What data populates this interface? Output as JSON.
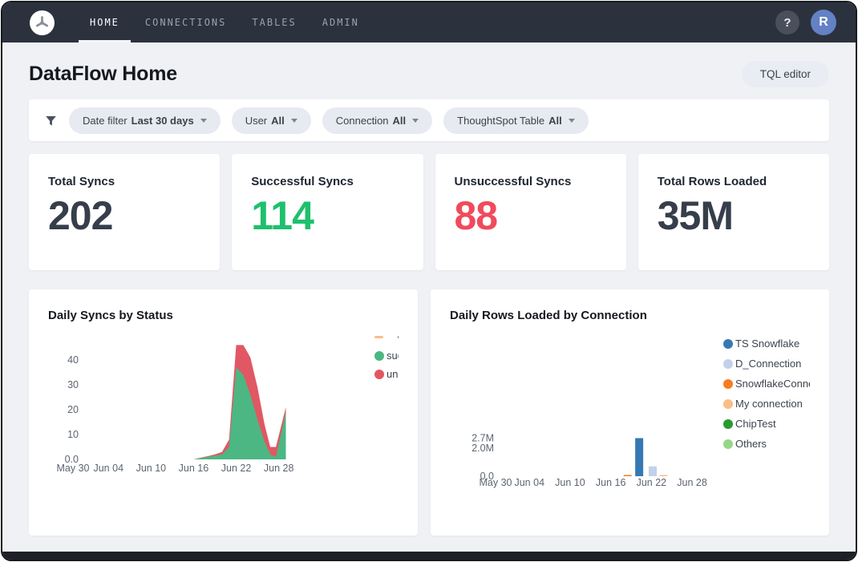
{
  "nav": {
    "items": [
      {
        "label": "HOME",
        "active": true
      },
      {
        "label": "CONNECTIONS",
        "active": false
      },
      {
        "label": "TABLES",
        "active": false
      },
      {
        "label": "ADMIN",
        "active": false
      }
    ],
    "help_label": "?",
    "avatar_label": "R",
    "avatar_color": "#6381c4"
  },
  "header": {
    "title": "DataFlow Home",
    "tql_button_label": "TQL editor"
  },
  "filters": {
    "items": [
      {
        "label": "Date filter",
        "value": "Last 30 days"
      },
      {
        "label": "User",
        "value": "All"
      },
      {
        "label": "Connection",
        "value": "All"
      },
      {
        "label": "ThoughtSpot Table",
        "value": "All"
      }
    ]
  },
  "metrics": [
    {
      "label": "Total Syncs",
      "value": "202",
      "color": "#353e4a"
    },
    {
      "label": "Successful Syncs",
      "value": "114",
      "color": "#1ec06d"
    },
    {
      "label": "Unsuccessful Syncs",
      "value": "88",
      "color": "#f04b5c"
    },
    {
      "label": "Total Rows Loaded",
      "value": "35M",
      "color": "#353e4a"
    }
  ],
  "chart_data": [
    {
      "type": "area",
      "title": "Daily Syncs by Status",
      "stacked": true,
      "grid": false,
      "legend_position": "right",
      "series": [
        {
          "name": "successful",
          "color": "#4cb782"
        },
        {
          "name": "unsuccessful",
          "color": "#e15763"
        }
      ],
      "x_axis": {
        "ticks": [
          {
            "day": 0,
            "label": "May 30"
          },
          {
            "day": 5,
            "label": "Jun 04"
          },
          {
            "day": 11,
            "label": "Jun 10"
          },
          {
            "day": 17,
            "label": "Jun 16"
          },
          {
            "day": 23,
            "label": "Jun 22"
          },
          {
            "day": 29,
            "label": "Jun 28"
          }
        ]
      },
      "y_axis": {
        "ticks": [
          {
            "v": 0,
            "label": "0.0"
          },
          {
            "v": 10,
            "label": "10"
          },
          {
            "v": 20,
            "label": "20"
          },
          {
            "v": 30,
            "label": "30"
          },
          {
            "v": 40,
            "label": "40"
          }
        ],
        "max": 47
      },
      "points": [
        {
          "day": 0,
          "successful": 0,
          "unsuccessful": 0
        },
        {
          "day": 17,
          "successful": 0,
          "unsuccessful": 0
        },
        {
          "day": 18,
          "successful": 0.5,
          "unsuccessful": 0.2
        },
        {
          "day": 19,
          "successful": 1,
          "unsuccessful": 0.3
        },
        {
          "day": 20,
          "successful": 1.5,
          "unsuccessful": 0.5
        },
        {
          "day": 21,
          "successful": 2,
          "unsuccessful": 1
        },
        {
          "day": 22,
          "successful": 5,
          "unsuccessful": 3
        },
        {
          "day": 23,
          "successful": 37,
          "unsuccessful": 9
        },
        {
          "day": 24,
          "successful": 34,
          "unsuccessful": 12
        },
        {
          "day": 25,
          "successful": 26,
          "unsuccessful": 15
        },
        {
          "day": 26,
          "successful": 16,
          "unsuccessful": 13
        },
        {
          "day": 27,
          "successful": 7,
          "unsuccessful": 7
        },
        {
          "day": 27.8,
          "successful": 2,
          "unsuccessful": 3
        },
        {
          "day": 28.6,
          "successful": 1,
          "unsuccessful": 4
        },
        {
          "day": 30,
          "successful": 19,
          "unsuccessful": 2
        }
      ],
      "legend": [
        {
          "label": "",
          "marker": "dash",
          "color": "#fbbd88"
        },
        {
          "label": "successful",
          "marker": "dot",
          "color": "#4cb782"
        },
        {
          "label": "unsuccessful",
          "marker": "dot",
          "color": "#e15763"
        }
      ]
    },
    {
      "type": "bar",
      "title": "Daily Rows Loaded by Connection",
      "grid": false,
      "legend_position": "right",
      "x_axis": {
        "ticks": [
          {
            "day": 0,
            "label": "May 30"
          },
          {
            "day": 5,
            "label": "Jun 04"
          },
          {
            "day": 11,
            "label": "Jun 10"
          },
          {
            "day": 17,
            "label": "Jun 16"
          },
          {
            "day": 23,
            "label": "Jun 22"
          },
          {
            "day": 29,
            "label": "Jun 28"
          }
        ]
      },
      "y_axis": {
        "ticks": [
          {
            "v": 0,
            "label": "0.0"
          },
          {
            "v": 2,
            "label": "2.0M"
          },
          {
            "v": 2.7,
            "label": "2.7M"
          }
        ],
        "max": 2.9
      },
      "bars": [
        {
          "connection": "SnowflakeConnection",
          "day": 19.5,
          "rows_millions": 0.08
        },
        {
          "connection": "TS Snowflake",
          "day": 21.2,
          "rows_millions": 2.7
        },
        {
          "connection": "D_Connection",
          "day": 23.2,
          "rows_millions": 0.7
        },
        {
          "connection": "My connection",
          "day": 24.8,
          "rows_millions": 0.05
        }
      ],
      "legend": [
        {
          "label": "TS Snowflake",
          "marker": "dot",
          "color": "#3579b4"
        },
        {
          "label": "D_Connection",
          "marker": "dot",
          "color": "#c2d1e9"
        },
        {
          "label": "SnowflakeConnection",
          "marker": "dot",
          "color": "#f87d1e"
        },
        {
          "label": "My connection",
          "marker": "dot",
          "color": "#fbbd88"
        },
        {
          "label": "ChipTest",
          "marker": "dot",
          "color": "#279b30"
        },
        {
          "label": "Others",
          "marker": "dot",
          "color": "#95d689"
        }
      ]
    }
  ]
}
